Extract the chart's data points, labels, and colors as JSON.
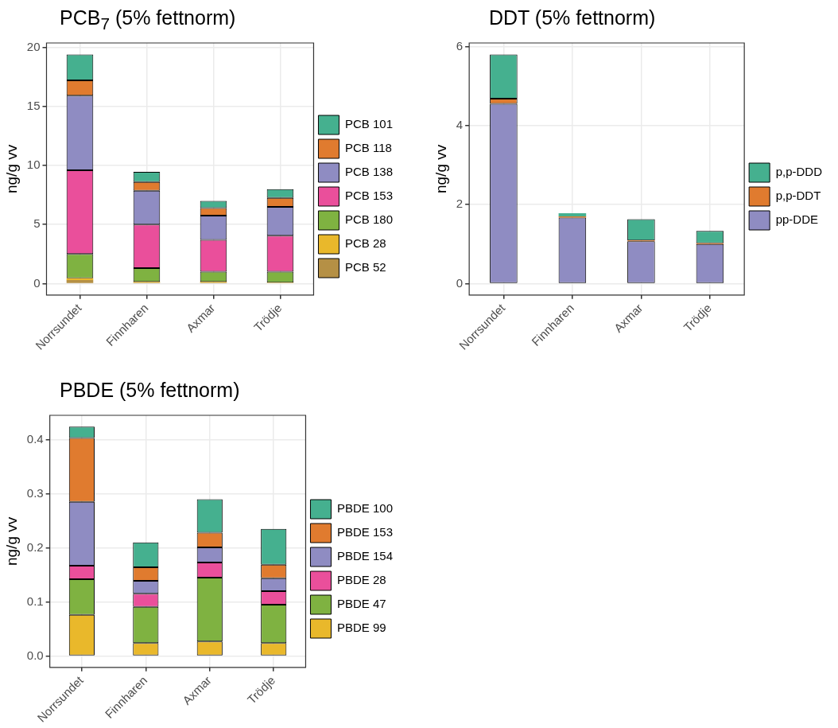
{
  "chart_data": [
    {
      "type": "bar",
      "title": "PCB$_{7}$ (5% fettnorm)",
      "ylabel": "ng/g vv",
      "categories": [
        "Norrsundet",
        "Finnharen",
        "Axmar",
        "Trödje"
      ],
      "stacked": true,
      "legend": "right",
      "grid": true,
      "ylim": [
        -0.97,
        20.37
      ],
      "yticks": [
        0,
        5,
        10,
        15,
        20
      ],
      "series": [
        {
          "name": "PCB 52",
          "color": "#b59045",
          "values": [
            0.3,
            0.1,
            0.1,
            0.05
          ]
        },
        {
          "name": "PCB 28",
          "color": "#e9b82b",
          "values": [
            0.15,
            0.05,
            0.05,
            0.03
          ]
        },
        {
          "name": "PCB 180",
          "color": "#7fb241",
          "values": [
            2.05,
            1.15,
            0.85,
            0.92
          ]
        },
        {
          "name": "PCB 153",
          "color": "#ea4f9b",
          "values": [
            7.1,
            3.7,
            2.7,
            3.05
          ]
        },
        {
          "name": "PCB 138",
          "color": "#8f8cc2",
          "values": [
            6.3,
            2.85,
            2.05,
            2.45
          ]
        },
        {
          "name": "PCB 118",
          "color": "#e07b2f",
          "values": [
            1.3,
            0.75,
            0.65,
            0.75
          ]
        },
        {
          "name": "PCB 101",
          "color": "#45b08f",
          "values": [
            2.2,
            0.85,
            0.6,
            0.75
          ]
        }
      ]
    },
    {
      "type": "bar",
      "title": "DDT (5% fettnorm)",
      "ylabel": "ng/g vv",
      "categories": [
        "Norrsundet",
        "Finnharen",
        "Axmar",
        "Trödje"
      ],
      "stacked": true,
      "legend": "right",
      "grid": true,
      "ylim": [
        -0.29,
        6.09
      ],
      "yticks": [
        0,
        2,
        4,
        6
      ],
      "series": [
        {
          "name": "pp-DDE",
          "color": "#8f8cc2",
          "values": [
            4.55,
            1.67,
            1.07,
            1.0
          ]
        },
        {
          "name": "p,p-DDT",
          "color": "#e07b2f",
          "values": [
            0.13,
            0.03,
            0.02,
            0.02
          ]
        },
        {
          "name": "p,p-DDD",
          "color": "#45b08f",
          "values": [
            1.12,
            0.08,
            0.54,
            0.31
          ]
        }
      ]
    },
    {
      "type": "bar",
      "title": "PBDE (5% fettnorm)",
      "ylabel": "ng/g vv",
      "categories": [
        "Norrsundet",
        "Finnharen",
        "Axmar",
        "Trödje"
      ],
      "stacked": true,
      "legend": "right",
      "grid": true,
      "ylim": [
        -0.021,
        0.445
      ],
      "yticks": [
        {
          "value": 0,
          "label": "0.0"
        },
        0.1,
        0.2,
        0.3,
        0.4
      ],
      "series": [
        {
          "name": "PBDE 99",
          "color": "#e9b82b",
          "values": [
            0.076,
            0.024,
            0.027,
            0.024
          ]
        },
        {
          "name": "PBDE 47",
          "color": "#7fb241",
          "values": [
            0.066,
            0.067,
            0.118,
            0.071
          ]
        },
        {
          "name": "PBDE 28",
          "color": "#ea4f9b",
          "values": [
            0.025,
            0.024,
            0.028,
            0.025
          ]
        },
        {
          "name": "PBDE 154",
          "color": "#8f8cc2",
          "values": [
            0.118,
            0.024,
            0.028,
            0.024
          ]
        },
        {
          "name": "PBDE 153",
          "color": "#e07b2f",
          "values": [
            0.118,
            0.025,
            0.027,
            0.025
          ]
        },
        {
          "name": "PBDE 100",
          "color": "#45b08f",
          "values": [
            0.021,
            0.046,
            0.062,
            0.066
          ]
        }
      ]
    }
  ]
}
